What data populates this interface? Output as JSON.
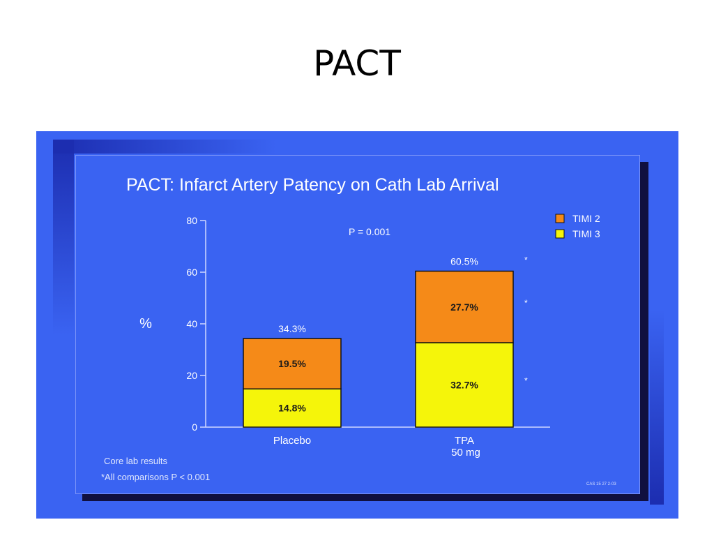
{
  "page": {
    "title": "PACT"
  },
  "chart_data": {
    "type": "bar",
    "stacked": true,
    "title": "PACT:  Infarct Artery Patency on Cath Lab Arrival",
    "ylabel": "%",
    "ylim": [
      0,
      80
    ],
    "yticks": [
      0,
      20,
      40,
      60,
      80
    ],
    "categories": [
      "Placebo",
      "TPA\n50 mg"
    ],
    "series": [
      {
        "name": "TIMI 3",
        "values": [
          14.8,
          32.7
        ],
        "labels": [
          "14.8%",
          "32.7%"
        ],
        "color": "#f5f50a"
      },
      {
        "name": "TIMI 2",
        "values": [
          19.5,
          27.7
        ],
        "labels": [
          "19.5%",
          "27.7%"
        ],
        "color": "#f58a18"
      }
    ],
    "totals": [
      "34.3%",
      "60.5%"
    ],
    "legend": {
      "placement": "top-right",
      "order": [
        "TIMI 2",
        "TIMI 3"
      ]
    },
    "annotations": {
      "p_value": "P = 0.001",
      "significance_marker": "*",
      "footnotes": [
        "Core lab results",
        "*All comparisons P < 0.001"
      ],
      "code": "CAS 15 27 2-03"
    }
  }
}
